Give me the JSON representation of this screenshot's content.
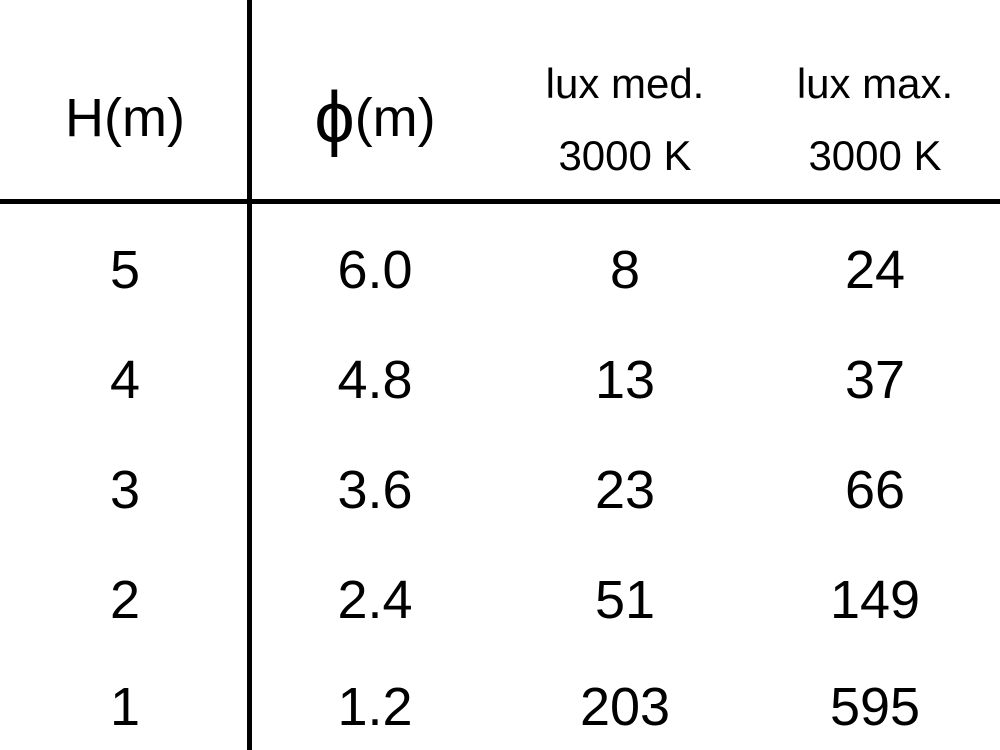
{
  "table": {
    "headers": [
      {
        "line1": "H(m)"
      },
      {
        "symbol": "ϕ",
        "line1": "(m)"
      },
      {
        "line1": "lux med.",
        "line2": "3000 K"
      },
      {
        "line1": "lux max.",
        "line2": "3000 K"
      }
    ],
    "rows": [
      [
        "5",
        "6.0",
        "8",
        "24"
      ],
      [
        "4",
        "4.8",
        "13",
        "37"
      ],
      [
        "3",
        "3.6",
        "23",
        "66"
      ],
      [
        "2",
        "2.4",
        "51",
        "149"
      ],
      [
        "1",
        "1.2",
        "203",
        "595"
      ]
    ]
  }
}
